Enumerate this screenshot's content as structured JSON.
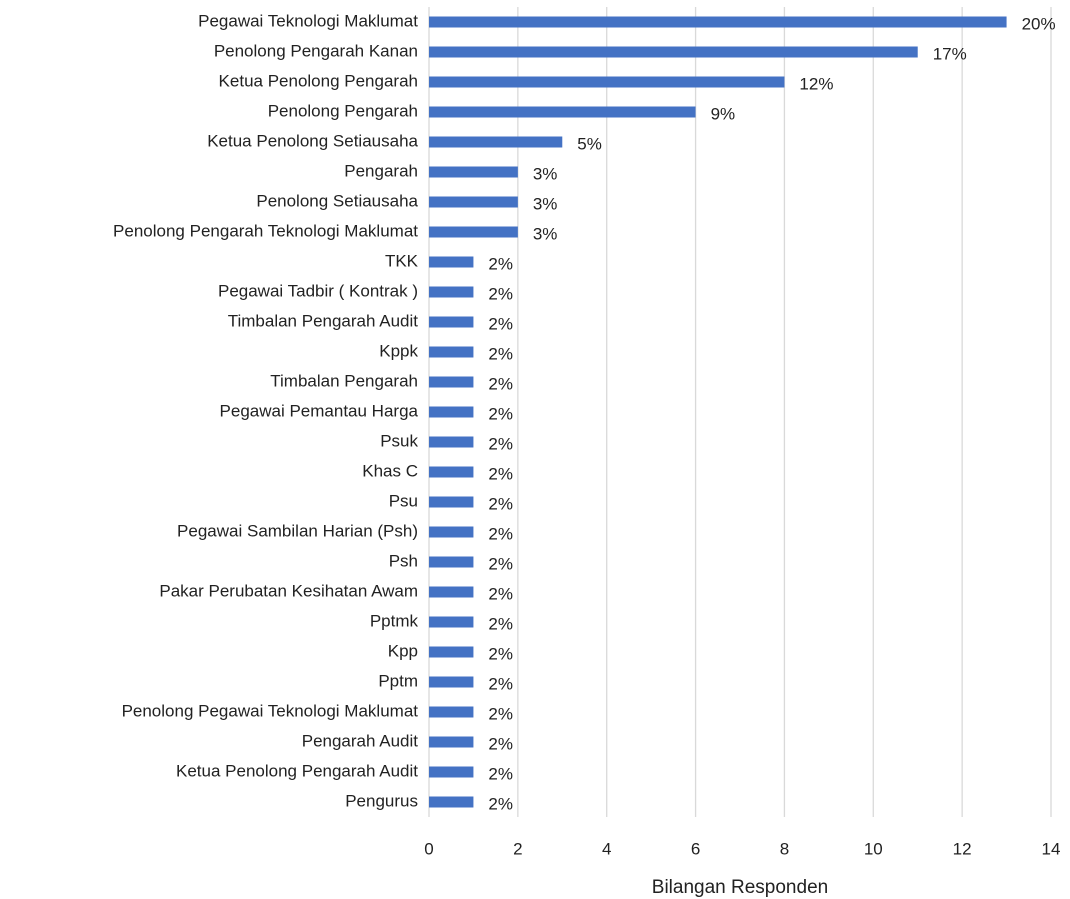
{
  "chart_data": {
    "type": "bar",
    "orientation": "horizontal",
    "x_label": "Bilangan Responden",
    "categories": [
      "Pegawai Teknologi Maklumat",
      "Penolong Pengarah Kanan",
      "Ketua Penolong Pengarah",
      "Penolong Pengarah",
      "Ketua Penolong Setiausaha",
      "Pengarah",
      "Penolong Setiausaha",
      "Penolong Pengarah Teknologi Maklumat",
      "TKK",
      "Pegawai Tadbir ( Kontrak )",
      "Timbalan Pengarah Audit",
      "Kppk",
      "Timbalan Pengarah",
      "Pegawai Pemantau Harga",
      "Psuk",
      "Khas C",
      "Psu",
      "Pegawai Sambilan Harian (Psh)",
      "Psh",
      "Pakar Perubatan Kesihatan Awam",
      "Pptmk",
      "Kpp",
      "Pptm",
      "Penolong Pegawai Teknologi Maklumat",
      "Pengarah Audit",
      "Ketua Penolong Pengarah Audit",
      "Pengurus"
    ],
    "values": [
      13,
      11,
      8,
      6,
      3,
      2,
      2,
      2,
      1,
      1,
      1,
      1,
      1,
      1,
      1,
      1,
      1,
      1,
      1,
      1,
      1,
      1,
      1,
      1,
      1,
      1,
      1
    ],
    "value_labels": [
      "20%",
      "17%",
      "12%",
      "9%",
      "5%",
      "3%",
      "3%",
      "3%",
      "2%",
      "2%",
      "2%",
      "2%",
      "2%",
      "2%",
      "2%",
      "2%",
      "2%",
      "2%",
      "2%",
      "2%",
      "2%",
      "2%",
      "2%",
      "2%",
      "2%",
      "2%",
      "2%"
    ],
    "color": "#4472c4",
    "xlim": [
      0,
      14
    ],
    "xticks": [
      0,
      2,
      4,
      6,
      8,
      10,
      12,
      14
    ],
    "grid": true
  }
}
